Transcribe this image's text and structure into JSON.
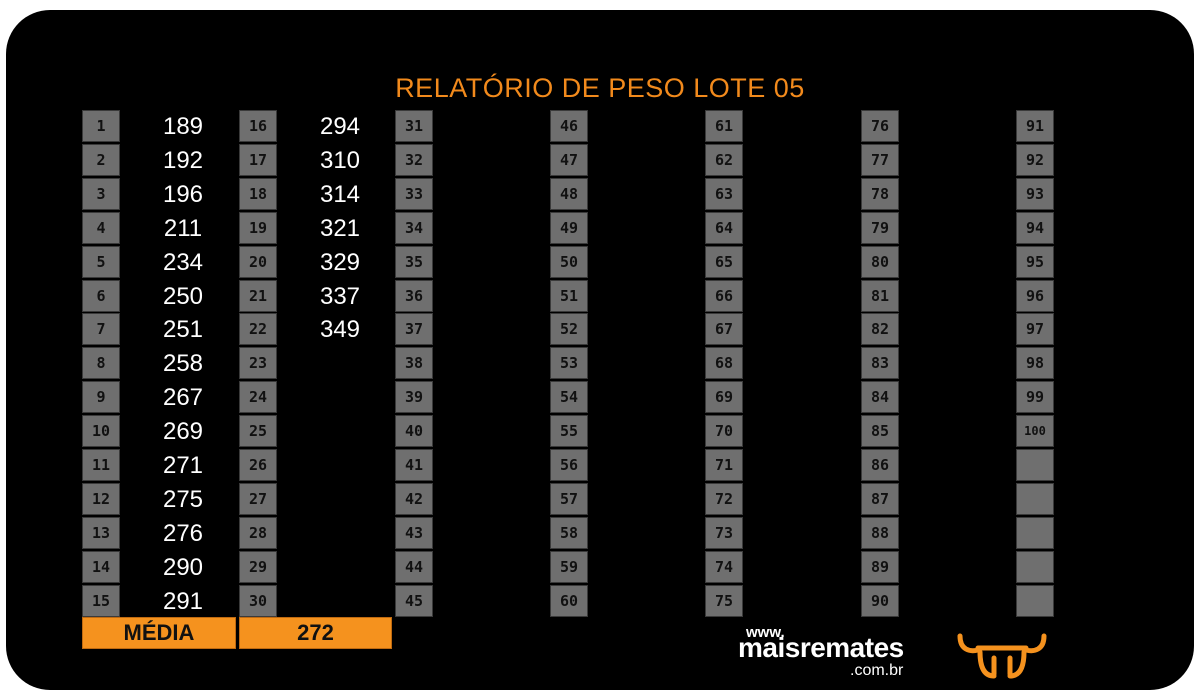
{
  "title": "RELATÓRIO DE PESO LOTE 05",
  "columns": [
    {
      "numbers": [
        "1",
        "2",
        "3",
        "4",
        "5",
        "6",
        "7",
        "8",
        "9",
        "10",
        "11",
        "12",
        "13",
        "14",
        "15"
      ],
      "weights": [
        "189",
        "192",
        "196",
        "211",
        "234",
        "250",
        "251",
        "258",
        "267",
        "269",
        "271",
        "275",
        "276",
        "290",
        "291"
      ]
    },
    {
      "numbers": [
        "16",
        "17",
        "18",
        "19",
        "20",
        "21",
        "22",
        "23",
        "24",
        "25",
        "26",
        "27",
        "28",
        "29",
        "30"
      ],
      "weights": [
        "294",
        "310",
        "314",
        "321",
        "329",
        "337",
        "349",
        "",
        "",
        "",
        "",
        "",
        "",
        "",
        ""
      ]
    },
    {
      "numbers": [
        "31",
        "32",
        "33",
        "34",
        "35",
        "36",
        "37",
        "38",
        "39",
        "40",
        "41",
        "42",
        "43",
        "44",
        "45"
      ],
      "weights": []
    },
    {
      "numbers": [
        "46",
        "47",
        "48",
        "49",
        "50",
        "51",
        "52",
        "53",
        "54",
        "55",
        "56",
        "57",
        "58",
        "59",
        "60"
      ],
      "weights": []
    },
    {
      "numbers": [
        "61",
        "62",
        "63",
        "64",
        "65",
        "66",
        "67",
        "68",
        "69",
        "70",
        "71",
        "72",
        "73",
        "74",
        "75"
      ],
      "weights": []
    },
    {
      "numbers": [
        "76",
        "77",
        "78",
        "79",
        "80",
        "81",
        "82",
        "83",
        "84",
        "85",
        "86",
        "87",
        "88",
        "89",
        "90"
      ],
      "weights": []
    },
    {
      "numbers": [
        "91",
        "92",
        "93",
        "94",
        "95",
        "96",
        "97",
        "98",
        "99",
        "100",
        "",
        "",
        "",
        "",
        ""
      ],
      "weights": []
    }
  ],
  "average": {
    "label": "MÉDIA",
    "value": "272"
  },
  "brand": {
    "www": "www.",
    "name": "maisremates",
    "domain": ".com.br",
    "logo_icon": "bull-horns-icon"
  },
  "colors": {
    "accent": "#f5921e",
    "title": "#f28a1c",
    "background": "#000000",
    "cell": "#6f6f6f"
  }
}
